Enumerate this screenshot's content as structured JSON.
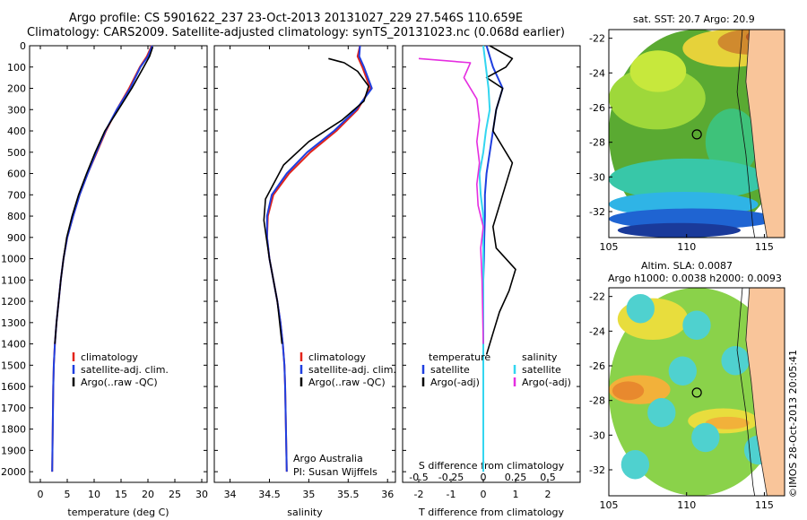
{
  "title_line1": "Argo profile: CS 5901622_237 23-Oct-2013 20131027_229 27.546S 110.659E",
  "title_line2": "Climatology: CARS2009. Satellite-adjusted climatology: synTS_20131023.nc (0.068d earlier)",
  "depth_ticks": [
    0,
    100,
    200,
    300,
    400,
    500,
    600,
    700,
    800,
    900,
    1000,
    1100,
    1200,
    1300,
    1400,
    1500,
    1600,
    1700,
    1800,
    1900,
    2000
  ],
  "temperature_panel": {
    "xlabel": "temperature (deg C)",
    "xticks": [
      0,
      5,
      10,
      15,
      20,
      25,
      30
    ],
    "legend": [
      "climatology",
      "satellite-adj. clim.",
      "Argo(..raw -QC)"
    ]
  },
  "salinity_panel": {
    "xlabel": "salinity",
    "xticks": [
      "34",
      "34.5",
      "35",
      "35.5",
      "36"
    ],
    "legend": [
      "climatology",
      "satellite-adj. clim.",
      "Argo(..raw -QC)"
    ],
    "note1": "Argo Australia",
    "note2": "PI: Susan Wijffels"
  },
  "diff_panel": {
    "xlabel": "T difference from climatology",
    "top_label": "S difference from climatology",
    "xticks_T": [
      "-2",
      "-1",
      "0",
      "1",
      "2"
    ],
    "xticks_S": [
      "-0.5",
      "-0.25",
      "0",
      "0.25",
      "0.5"
    ],
    "legend_temp_title": "temperature",
    "legend_sal_title": "salinity",
    "legend_temp": [
      "satellite",
      "Argo(-adj)"
    ],
    "legend_sal": [
      "satellite",
      "Argo(-adj)"
    ]
  },
  "map_sst": {
    "title": "sat. SST: 20.7  Argo: 20.9",
    "yticks": [
      "-22",
      "-24",
      "-26",
      "-28",
      "-30",
      "-32"
    ],
    "xticks": [
      "105",
      "110",
      "115"
    ]
  },
  "map_sla": {
    "title1": "Altim. SLA: 0.0087",
    "title2": "Argo h1000: 0.0038 h2000: 0.0093",
    "yticks": [
      "-22",
      "-24",
      "-26",
      "-28",
      "-30",
      "-32"
    ],
    "xticks": [
      "105",
      "110",
      "115"
    ]
  },
  "footer_vertical": "©IMOS 28-Oct-2013 20:05:41",
  "colors": {
    "climatology": "#e2231a",
    "satellite_adj": "#1f3fe0",
    "argo": "#000000",
    "sat_salinity": "#33d6f0",
    "argo_salinity": "#e52ee0",
    "land": "#f9c59a"
  },
  "chart_data": [
    {
      "type": "line",
      "title": "",
      "xlabel": "temperature (deg C)",
      "ylabel": "",
      "xlim": [
        -2,
        31
      ],
      "ylim": [
        2050,
        0
      ],
      "series": [
        {
          "name": "climatology",
          "x": [
            20.7,
            19.8,
            18.5,
            16.5,
            14.2,
            12.2,
            10.5,
            8.8,
            7.3,
            6.1,
            5.0,
            4.3,
            3.8,
            3.4,
            3.0,
            2.7,
            2.5,
            2.4,
            2.3,
            2.2
          ],
          "y": [
            0,
            50,
            100,
            200,
            300,
            400,
            500,
            600,
            700,
            800,
            900,
            1000,
            1100,
            1200,
            1300,
            1400,
            1500,
            1600,
            1800,
            2000
          ]
        },
        {
          "name": "satellite-adj. clim.",
          "x": [
            20.8,
            20.0,
            18.6,
            16.7,
            14.2,
            12.1,
            10.4,
            8.8,
            7.3,
            6.1,
            5.0,
            4.3,
            3.8,
            3.4,
            3.0,
            2.7,
            2.5,
            2.4,
            2.3,
            2.2
          ],
          "y": [
            0,
            50,
            100,
            200,
            300,
            400,
            500,
            600,
            700,
            800,
            900,
            1000,
            1100,
            1200,
            1300,
            1400,
            1500,
            1600,
            1800,
            2000
          ]
        },
        {
          "name": "Argo(..raw -QC)",
          "x": [
            20.9,
            20.3,
            19.2,
            17.0,
            14.5,
            12.0,
            10.2,
            8.6,
            7.1,
            5.9,
            4.9,
            4.3,
            3.8,
            3.4,
            3.0,
            2.7
          ],
          "y": [
            5,
            50,
            100,
            200,
            300,
            400,
            500,
            600,
            700,
            800,
            900,
            1000,
            1100,
            1200,
            1300,
            1400
          ]
        }
      ]
    },
    {
      "type": "line",
      "title": "",
      "xlabel": "salinity",
      "ylabel": "",
      "xlim": [
        33.8,
        36.1
      ],
      "ylim": [
        2050,
        0
      ],
      "series": [
        {
          "name": "climatology",
          "x": [
            35.65,
            35.62,
            35.68,
            35.78,
            35.62,
            35.35,
            35.02,
            34.75,
            34.55,
            34.48,
            34.47,
            34.5,
            34.55,
            34.6,
            34.64,
            34.67,
            34.69,
            34.7,
            34.71,
            34.72
          ],
          "y": [
            0,
            50,
            100,
            200,
            300,
            400,
            500,
            600,
            700,
            800,
            900,
            1000,
            1100,
            1200,
            1300,
            1400,
            1500,
            1600,
            1800,
            2000
          ]
        },
        {
          "name": "satellite-adj. clim.",
          "x": [
            35.65,
            35.64,
            35.7,
            35.8,
            35.6,
            35.32,
            34.98,
            34.72,
            34.53,
            34.47,
            34.47,
            34.5,
            34.55,
            34.6,
            34.64,
            34.67,
            34.69,
            34.7,
            34.71,
            34.72
          ],
          "y": [
            0,
            50,
            100,
            200,
            300,
            400,
            500,
            600,
            700,
            800,
            900,
            1000,
            1100,
            1200,
            1300,
            1400,
            1500,
            1600,
            1800,
            2000
          ]
        },
        {
          "name": "Argo(..raw -QC)",
          "x": [
            35.25,
            35.45,
            35.62,
            35.76,
            35.7,
            35.42,
            35.0,
            34.68,
            34.45,
            34.43,
            34.46,
            34.5,
            34.55,
            34.6,
            34.63,
            34.66
          ],
          "y": [
            60,
            80,
            120,
            190,
            260,
            350,
            450,
            560,
            720,
            820,
            900,
            1000,
            1100,
            1200,
            1300,
            1400
          ]
        }
      ]
    },
    {
      "type": "line",
      "title": "",
      "xlabel": "T difference from climatology",
      "ylabel": "",
      "xlim": [
        -2.5,
        3
      ],
      "ylim": [
        2050,
        0
      ],
      "series": [
        {
          "name": "satellite",
          "x": [
            0.1,
            0.2,
            0.3,
            0.6,
            0.4,
            0.3,
            0.2,
            0.1,
            0.05,
            0.05,
            0.03,
            0.02,
            0.0,
            0.0,
            0.0,
            0.0,
            0.0,
            0.0
          ],
          "y": [
            0,
            50,
            100,
            200,
            300,
            400,
            500,
            600,
            700,
            800,
            900,
            1000,
            1100,
            1200,
            1300,
            1500,
            1800,
            2000
          ]
        },
        {
          "name": "Argo(-adj)",
          "x": [
            0.2,
            0.9,
            0.7,
            0.1,
            0.6,
            0.4,
            0.3,
            0.9,
            0.6,
            0.3,
            0.4,
            1.0,
            0.8,
            0.5,
            0.3,
            0.1
          ],
          "y": [
            0,
            60,
            100,
            150,
            200,
            300,
            400,
            550,
            700,
            850,
            950,
            1050,
            1150,
            1250,
            1350,
            1450
          ]
        }
      ]
    },
    {
      "type": "line",
      "title": "",
      "xlabel": "S difference from climatology",
      "ylabel": "",
      "xlim": [
        -0.625,
        0.75
      ],
      "ylim": [
        2050,
        0
      ],
      "series": [
        {
          "name": "satellite",
          "x": [
            0.0,
            0.02,
            0.04,
            0.05,
            0.02,
            0.0,
            -0.03,
            -0.02,
            0.0,
            0.0,
            0.0,
            0.0,
            0.0,
            0.0
          ],
          "y": [
            0,
            100,
            200,
            300,
            400,
            500,
            600,
            700,
            800,
            900,
            1000,
            1200,
            1500,
            2000
          ]
        },
        {
          "name": "Argo(-adj)",
          "x": [
            -0.5,
            -0.1,
            -0.15,
            -0.05,
            -0.03,
            -0.05,
            -0.03,
            -0.05,
            -0.04,
            0.0,
            -0.02,
            -0.01,
            0.0
          ],
          "y": [
            60,
            80,
            150,
            250,
            350,
            450,
            550,
            650,
            750,
            850,
            950,
            1100,
            1400
          ]
        }
      ]
    }
  ]
}
